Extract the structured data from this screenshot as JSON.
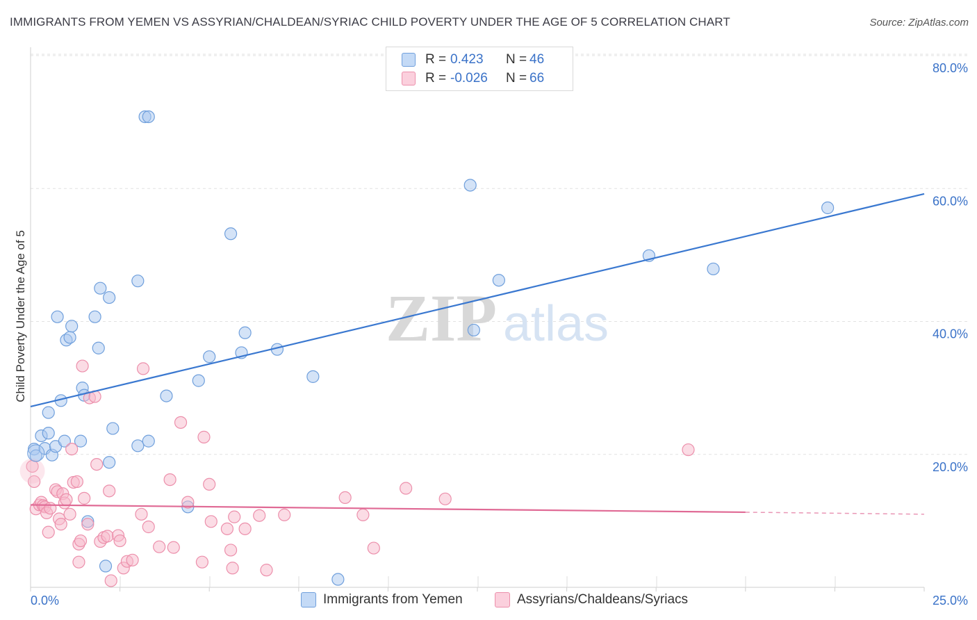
{
  "title": "IMMIGRANTS FROM YEMEN VS ASSYRIAN/CHALDEAN/SYRIAC CHILD POVERTY UNDER THE AGE OF 5 CORRELATION CHART",
  "source": "Source: ZipAtlas.com",
  "watermark": {
    "zip": "ZIP",
    "atlas": "atlas"
  },
  "legend": {
    "r_label": "R =",
    "n_label": "N =",
    "rows": [
      {
        "r": "0.423",
        "n": "46",
        "color": "#a9c8f0"
      },
      {
        "r": "-0.026",
        "n": "66",
        "color": "#f7b9cc"
      }
    ]
  },
  "bottom_legend": [
    "Immigrants from Yemen",
    "Assyrians/Chaldeans/Syriacs"
  ],
  "chart_data": {
    "type": "scatter",
    "ylabel": "Child Poverty Under the Age of 5",
    "xlim": [
      0,
      25
    ],
    "ylim": [
      0,
      80
    ],
    "x_tick_labels": [
      "0.0%",
      "25.0%"
    ],
    "y_tick_labels": [
      "20.0%",
      "40.0%",
      "60.0%",
      "80.0%"
    ],
    "y_ticks": [
      20,
      40,
      60,
      80
    ],
    "grid": true,
    "legend_position": "top-center",
    "series": [
      {
        "name": "Immigrants from Yemen",
        "color": "#a9c8f0",
        "stroke": "#6f9fdc",
        "line_color": "#3a78d0",
        "trend": {
          "x": [
            0,
            25
          ],
          "y": [
            27.2,
            59.2
          ]
        },
        "points": [
          [
            0.1,
            20.8
          ],
          [
            0.15,
            19.8
          ],
          [
            0.3,
            22.8
          ],
          [
            0.4,
            20.9
          ],
          [
            0.5,
            26.3
          ],
          [
            0.5,
            23.2
          ],
          [
            0.6,
            19.9
          ],
          [
            0.7,
            21.2
          ],
          [
            0.75,
            40.7
          ],
          [
            0.85,
            28.1
          ],
          [
            0.95,
            22.0
          ],
          [
            1.0,
            37.2
          ],
          [
            1.1,
            37.6
          ],
          [
            1.15,
            39.3
          ],
          [
            1.4,
            22.0
          ],
          [
            1.45,
            30.0
          ],
          [
            1.5,
            28.9
          ],
          [
            1.6,
            9.9
          ],
          [
            1.8,
            40.7
          ],
          [
            1.9,
            36.0
          ],
          [
            1.95,
            45.0
          ],
          [
            2.1,
            3.2
          ],
          [
            2.2,
            43.6
          ],
          [
            2.2,
            18.8
          ],
          [
            2.3,
            23.9
          ],
          [
            3.0,
            21.3
          ],
          [
            3.0,
            46.1
          ],
          [
            3.2,
            70.8
          ],
          [
            3.3,
            70.8
          ],
          [
            3.3,
            22.0
          ],
          [
            3.8,
            28.8
          ],
          [
            4.4,
            12.1
          ],
          [
            4.7,
            31.1
          ],
          [
            5.0,
            34.7
          ],
          [
            5.6,
            53.2
          ],
          [
            5.9,
            35.3
          ],
          [
            6.0,
            38.3
          ],
          [
            6.9,
            35.8
          ],
          [
            7.9,
            31.7
          ],
          [
            8.6,
            1.2
          ],
          [
            12.3,
            60.5
          ],
          [
            12.4,
            38.7
          ],
          [
            13.1,
            46.2
          ],
          [
            17.3,
            49.9
          ],
          [
            19.1,
            47.9
          ],
          [
            22.3,
            57.1
          ]
        ]
      },
      {
        "name": "Assyrians/Chaldeans/Syriacs",
        "color": "#f7b9cc",
        "stroke": "#ec8fab",
        "line_color": "#e06a95",
        "trend": {
          "x": [
            0,
            20
          ],
          "y": [
            12.4,
            11.3
          ]
        },
        "trend_dashed": {
          "x": [
            20,
            25
          ],
          "y": [
            11.3,
            11.0
          ]
        },
        "points": [
          [
            0.05,
            18.2
          ],
          [
            0.1,
            15.9
          ],
          [
            0.15,
            11.8
          ],
          [
            0.25,
            12.4
          ],
          [
            0.3,
            12.8
          ],
          [
            0.35,
            12.3
          ],
          [
            0.4,
            12.1
          ],
          [
            0.45,
            11.2
          ],
          [
            0.5,
            8.3
          ],
          [
            0.55,
            11.9
          ],
          [
            0.7,
            14.7
          ],
          [
            0.75,
            14.4
          ],
          [
            0.8,
            10.3
          ],
          [
            0.85,
            9.5
          ],
          [
            0.9,
            14.1
          ],
          [
            0.95,
            12.7
          ],
          [
            1.0,
            13.2
          ],
          [
            1.1,
            11.0
          ],
          [
            1.15,
            20.8
          ],
          [
            1.2,
            15.8
          ],
          [
            1.3,
            15.9
          ],
          [
            1.35,
            3.8
          ],
          [
            1.35,
            6.5
          ],
          [
            1.4,
            7.0
          ],
          [
            1.45,
            33.3
          ],
          [
            1.5,
            13.4
          ],
          [
            1.6,
            9.5
          ],
          [
            1.65,
            28.5
          ],
          [
            1.8,
            28.7
          ],
          [
            1.85,
            18.5
          ],
          [
            1.95,
            6.9
          ],
          [
            2.05,
            7.5
          ],
          [
            2.15,
            7.7
          ],
          [
            2.2,
            14.5
          ],
          [
            2.25,
            1.0
          ],
          [
            2.45,
            7.8
          ],
          [
            2.5,
            7.0
          ],
          [
            2.6,
            2.9
          ],
          [
            2.7,
            3.9
          ],
          [
            2.85,
            4.1
          ],
          [
            3.1,
            11.0
          ],
          [
            3.15,
            32.9
          ],
          [
            3.3,
            9.1
          ],
          [
            3.6,
            6.1
          ],
          [
            3.9,
            16.2
          ],
          [
            4.0,
            6.0
          ],
          [
            4.2,
            24.8
          ],
          [
            4.4,
            12.8
          ],
          [
            4.8,
            3.8
          ],
          [
            4.85,
            22.6
          ],
          [
            5.0,
            15.5
          ],
          [
            5.05,
            9.9
          ],
          [
            5.5,
            8.8
          ],
          [
            5.6,
            5.6
          ],
          [
            5.65,
            2.9
          ],
          [
            5.7,
            10.6
          ],
          [
            6.0,
            8.8
          ],
          [
            6.4,
            10.8
          ],
          [
            6.6,
            2.6
          ],
          [
            7.1,
            10.9
          ],
          [
            8.8,
            13.5
          ],
          [
            9.3,
            10.9
          ],
          [
            9.6,
            5.9
          ],
          [
            10.5,
            14.9
          ],
          [
            11.6,
            13.3
          ],
          [
            18.4,
            20.7
          ]
        ]
      }
    ]
  }
}
